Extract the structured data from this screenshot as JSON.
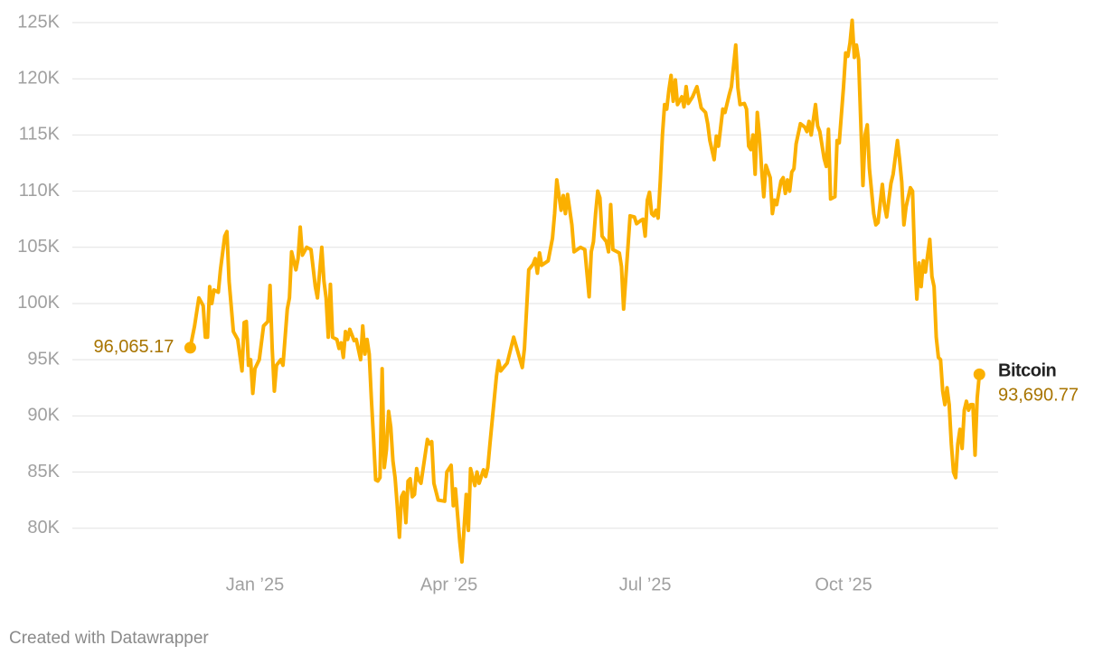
{
  "chart_data": {
    "type": "line",
    "footer": "Created with Datawrapper",
    "x": [
      -30,
      -28,
      -26,
      -24,
      -23,
      -22,
      -21,
      -20,
      -19,
      -17,
      -16,
      -14,
      -13,
      -12,
      -10,
      -8,
      -6,
      -5,
      -4,
      -3,
      -2,
      -1,
      0,
      2,
      4,
      6,
      7,
      8,
      9,
      10,
      12,
      13,
      15,
      16,
      17,
      19,
      20,
      21,
      22,
      24,
      26,
      28,
      29,
      31,
      32,
      33,
      34,
      35,
      36,
      38,
      39,
      40,
      41,
      42,
      43,
      44,
      46,
      47,
      49,
      50,
      51,
      52,
      53,
      54,
      55,
      56,
      57,
      58,
      59,
      60,
      61,
      62,
      63,
      64,
      65,
      66,
      67,
      68,
      69,
      70,
      71,
      72,
      73,
      74,
      75,
      76,
      77,
      80,
      81,
      82,
      83,
      85,
      88,
      89,
      91,
      92,
      93,
      95,
      96,
      98,
      99,
      100,
      102,
      103,
      104,
      106,
      107,
      108,
      109,
      112,
      113,
      114,
      117,
      120,
      124,
      125,
      127,
      129,
      130,
      131,
      132,
      133,
      136,
      138,
      139,
      140,
      142,
      143,
      144,
      145,
      147,
      148,
      151,
      153,
      155,
      156,
      157,
      158,
      159,
      160,
      161,
      163,
      164,
      165,
      166,
      169,
      170,
      171,
      173,
      174,
      176,
      177,
      179,
      180,
      181,
      182,
      183,
      184,
      185,
      186,
      187,
      188,
      189,
      190,
      191,
      192,
      193,
      194,
      195,
      196,
      198,
      199,
      200,
      201,
      203,
      205,
      207,
      209,
      210,
      211,
      213,
      214,
      215,
      217,
      218,
      220,
      221,
      223,
      224,
      225,
      227,
      228,
      229,
      230,
      231,
      232,
      233,
      234,
      235,
      236,
      237,
      239,
      240,
      241,
      242,
      244,
      245,
      246,
      247,
      248,
      249,
      250,
      251,
      253,
      255,
      256,
      257,
      258,
      260,
      261,
      262,
      264,
      265,
      266,
      267,
      269,
      270,
      271,
      273,
      274,
      275,
      276,
      277,
      278,
      279,
      280,
      282,
      283,
      284,
      285,
      287,
      288,
      289,
      291,
      292,
      293,
      295,
      296,
      297,
      298,
      299,
      300,
      301,
      302,
      304,
      305,
      306,
      307,
      308,
      309,
      310,
      311,
      312,
      313,
      314,
      315,
      316,
      317,
      318,
      319,
      320,
      321,
      322,
      323,
      324,
      325,
      326,
      327,
      328,
      329,
      330,
      331,
      332,
      333,
      334,
      335,
      336
    ],
    "series": [
      {
        "name": "Bitcoin",
        "color": "#fbb000",
        "values": [
          96065.17,
          98000,
          100500,
          99800,
          97000,
          97000,
          101500,
          100000,
          101200,
          101000,
          103000,
          106000,
          106400,
          102000,
          97500,
          96800,
          94000,
          98300,
          98400,
          94500,
          95000,
          92000,
          94200,
          95000,
          98000,
          98400,
          101600,
          96000,
          92200,
          94500,
          95000,
          94500,
          99500,
          100500,
          104600,
          103000,
          104000,
          106800,
          104300,
          105000,
          104800,
          101500,
          100500,
          105000,
          102000,
          100500,
          97000,
          101700,
          97000,
          96800,
          96000,
          96500,
          95200,
          97500,
          96800,
          97700,
          96700,
          96800,
          95000,
          98000,
          95500,
          96800,
          95500,
          91500,
          88000,
          84300,
          84200,
          84500,
          94200,
          85400,
          87000,
          90400,
          89000,
          86000,
          84500,
          82000,
          79200,
          82800,
          83200,
          80500,
          84200,
          84400,
          82800,
          83000,
          85300,
          84300,
          84000,
          87900,
          87500,
          87700,
          84000,
          82500,
          82400,
          85000,
          85600,
          82000,
          83500,
          78800,
          77000,
          83000,
          79800,
          85300,
          83800,
          85000,
          84000,
          85200,
          84600,
          85400,
          87500,
          93500,
          94900,
          94000,
          94700,
          97000,
          94300,
          96000,
          103000,
          103500,
          104000,
          102700,
          104500,
          103400,
          103800,
          105800,
          108000,
          111000,
          108300,
          109600,
          108000,
          109700,
          107000,
          104600,
          105000,
          104800,
          100600,
          104600,
          105500,
          108000,
          110000,
          109400,
          106000,
          105500,
          104600,
          108800,
          104800,
          104500,
          103300,
          99500,
          105000,
          107800,
          107700,
          107100,
          107400,
          107500,
          106000,
          109200,
          109900,
          108000,
          107800,
          108300,
          107600,
          110900,
          115000,
          117700,
          117300,
          119000,
          120300,
          118000,
          119900,
          117700,
          118400,
          117500,
          119300,
          117800,
          118400,
          119300,
          117400,
          117000,
          116000,
          114500,
          112800,
          114900,
          114000,
          117300,
          117000,
          118600,
          119300,
          123000,
          119200,
          117700,
          117800,
          117300,
          114000,
          113700,
          115000,
          111500,
          117000,
          115000,
          112000,
          109500,
          112300,
          111200,
          108000,
          109200,
          108800,
          110900,
          111200,
          109800,
          111000,
          110000,
          111700,
          112000,
          114200,
          116000,
          115700,
          115300,
          116200,
          115000,
          117700,
          115800,
          115300,
          112900,
          112200,
          115500,
          109300,
          109500,
          114500,
          114300,
          119300,
          122300,
          122000,
          123200,
          125200,
          121900,
          123000,
          121700,
          110500,
          115000,
          115900,
          112000,
          108000,
          107000,
          107200,
          110600,
          108700,
          107700,
          110700,
          111500,
          113000,
          114500,
          112800,
          110800,
          107000,
          108600,
          110300,
          110000,
          104000,
          100400,
          103600,
          101500,
          103800,
          102800,
          104300,
          105700,
          102400,
          101500,
          97000,
          95200,
          95000,
          92200,
          91000,
          92500,
          91000,
          87500,
          85000,
          84500,
          87500,
          88800,
          87100,
          90500,
          91300,
          90500,
          91000,
          91000,
          86500,
          91600,
          93690.77
        ]
      }
    ],
    "annotations": [
      {
        "label": "96,065.17",
        "x": -30,
        "y": 96065.17,
        "side": "left"
      },
      {
        "label": "93,690.77",
        "x": 336,
        "y": 93690.77,
        "side": "right"
      }
    ],
    "label_color": "#a87400",
    "xlim": [
      -84.7,
      344.7
    ],
    "xticks": [
      {
        "value": 0,
        "label": "Jan ’25"
      },
      {
        "value": 90,
        "label": "Apr ’25"
      },
      {
        "value": 181,
        "label": "Jul ’25"
      },
      {
        "value": 273,
        "label": "Oct ’25"
      }
    ],
    "ylim": [
      77000,
      125000
    ],
    "yticks": [
      {
        "value": 80000,
        "label": "80K"
      },
      {
        "value": 85000,
        "label": "85K"
      },
      {
        "value": 90000,
        "label": "90K"
      },
      {
        "value": 95000,
        "label": "95K"
      },
      {
        "value": 100000,
        "label": "100K"
      },
      {
        "value": 105000,
        "label": "105K"
      },
      {
        "value": 110000,
        "label": "110K"
      },
      {
        "value": 115000,
        "label": "115K"
      },
      {
        "value": 120000,
        "label": "120K"
      },
      {
        "value": 125000,
        "label": "125K"
      }
    ],
    "grid": true
  }
}
